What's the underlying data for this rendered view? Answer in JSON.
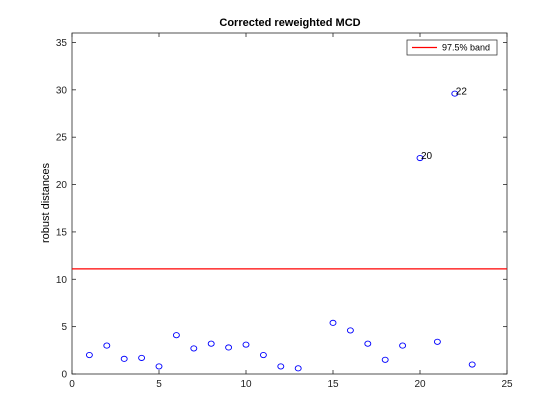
{
  "chart_data": {
    "type": "scatter",
    "title": "Corrected reweighted MCD",
    "xlabel": "",
    "ylabel": "robust distances",
    "xlim": [
      0,
      25
    ],
    "ylim": [
      0,
      36
    ],
    "xticks": [
      0,
      5,
      10,
      15,
      20,
      25
    ],
    "yticks": [
      0,
      5,
      10,
      15,
      20,
      25,
      30,
      35
    ],
    "grid": false,
    "legend_position": "top-right",
    "threshold": {
      "name": "97.5% band",
      "value": 11.1,
      "color": "#ff0000"
    },
    "series": [
      {
        "color": "#0000ff",
        "marker": "circle",
        "x": [
          1,
          2,
          3,
          4,
          5,
          6,
          7,
          8,
          9,
          10,
          11,
          12,
          13,
          15,
          16,
          17,
          18,
          19,
          20,
          21,
          22,
          23
        ],
        "y": [
          2.0,
          3.0,
          1.6,
          1.7,
          0.8,
          4.1,
          2.7,
          3.2,
          2.8,
          3.1,
          2.0,
          0.8,
          0.6,
          5.4,
          4.6,
          3.2,
          1.5,
          3.0,
          22.8,
          3.4,
          29.6,
          1.0
        ]
      }
    ],
    "annotations": [
      {
        "text": "20",
        "x": 20,
        "y": 22.8
      },
      {
        "text": "22",
        "x": 22,
        "y": 29.6
      }
    ]
  }
}
